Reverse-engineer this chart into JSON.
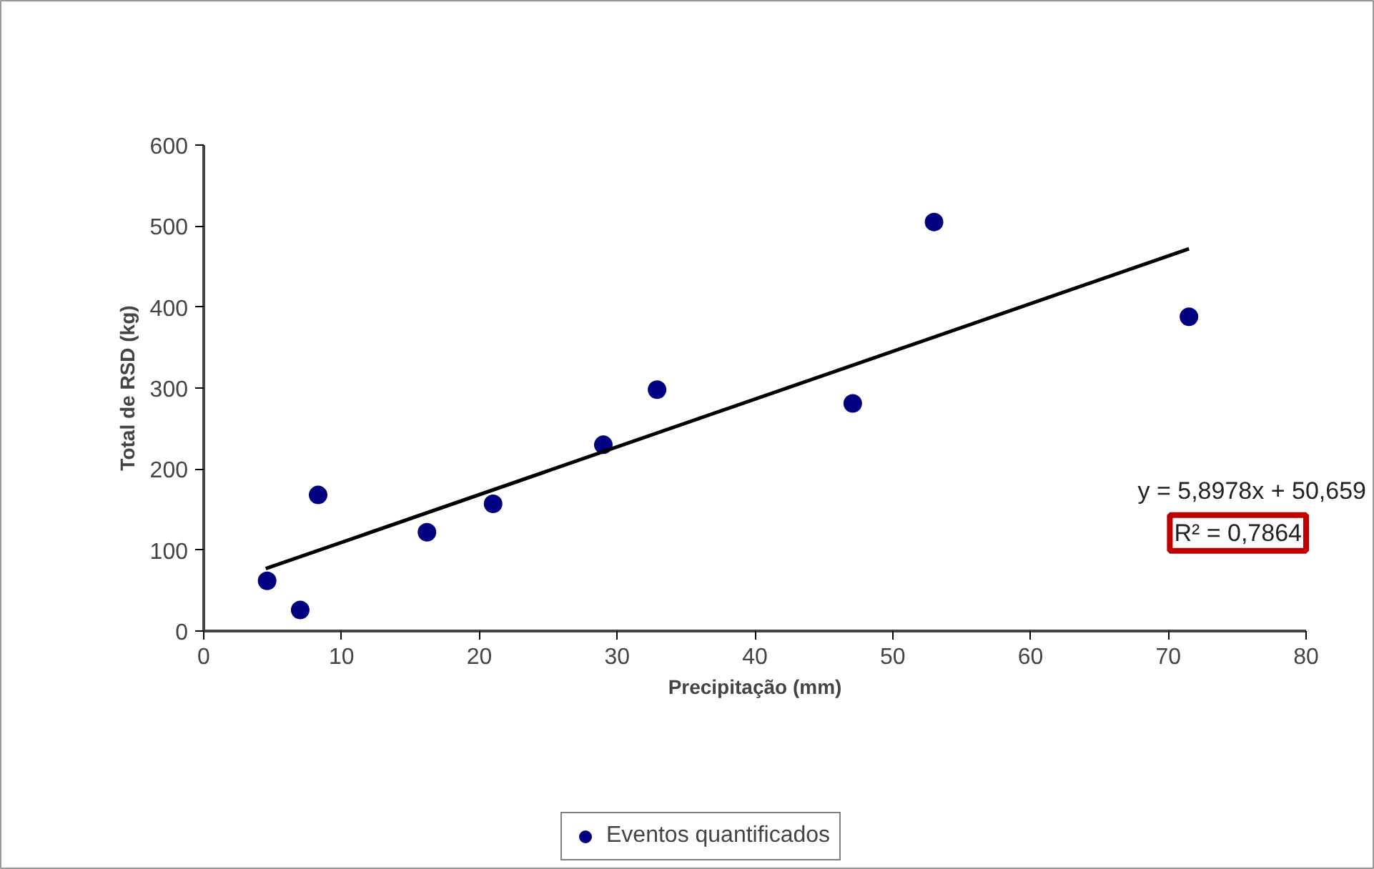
{
  "chart_data": {
    "type": "scatter",
    "xlabel": "Precipitação (mm)",
    "ylabel": "Total de RSD (kg)",
    "xlim": [
      0,
      80
    ],
    "xticks": [
      0,
      10,
      20,
      30,
      40,
      50,
      60,
      70,
      80
    ],
    "ylim": [
      0,
      600
    ],
    "yticks": [
      0,
      100,
      200,
      300,
      400,
      500,
      600
    ],
    "grid": false,
    "legend": "bottom",
    "marker": "circle",
    "series": [
      {
        "name": "Eventos quantificados",
        "type": "scatter",
        "color": "#000080",
        "x": [
          4.6,
          7.0,
          8.3,
          16.2,
          21.0,
          29.0,
          32.9,
          47.1,
          53.0,
          71.5
        ],
        "values": [
          62,
          26,
          168,
          122,
          157,
          230,
          298,
          281,
          505,
          388
        ]
      },
      {
        "type": "line",
        "color": "#000000",
        "line_style": "solid",
        "marker": "none",
        "x": [
          4.5,
          71.5
        ],
        "values": [
          77,
          472
        ]
      }
    ],
    "annotations": [
      "y = 5,8978x + 50,659",
      "R² = 0,7864"
    ]
  }
}
